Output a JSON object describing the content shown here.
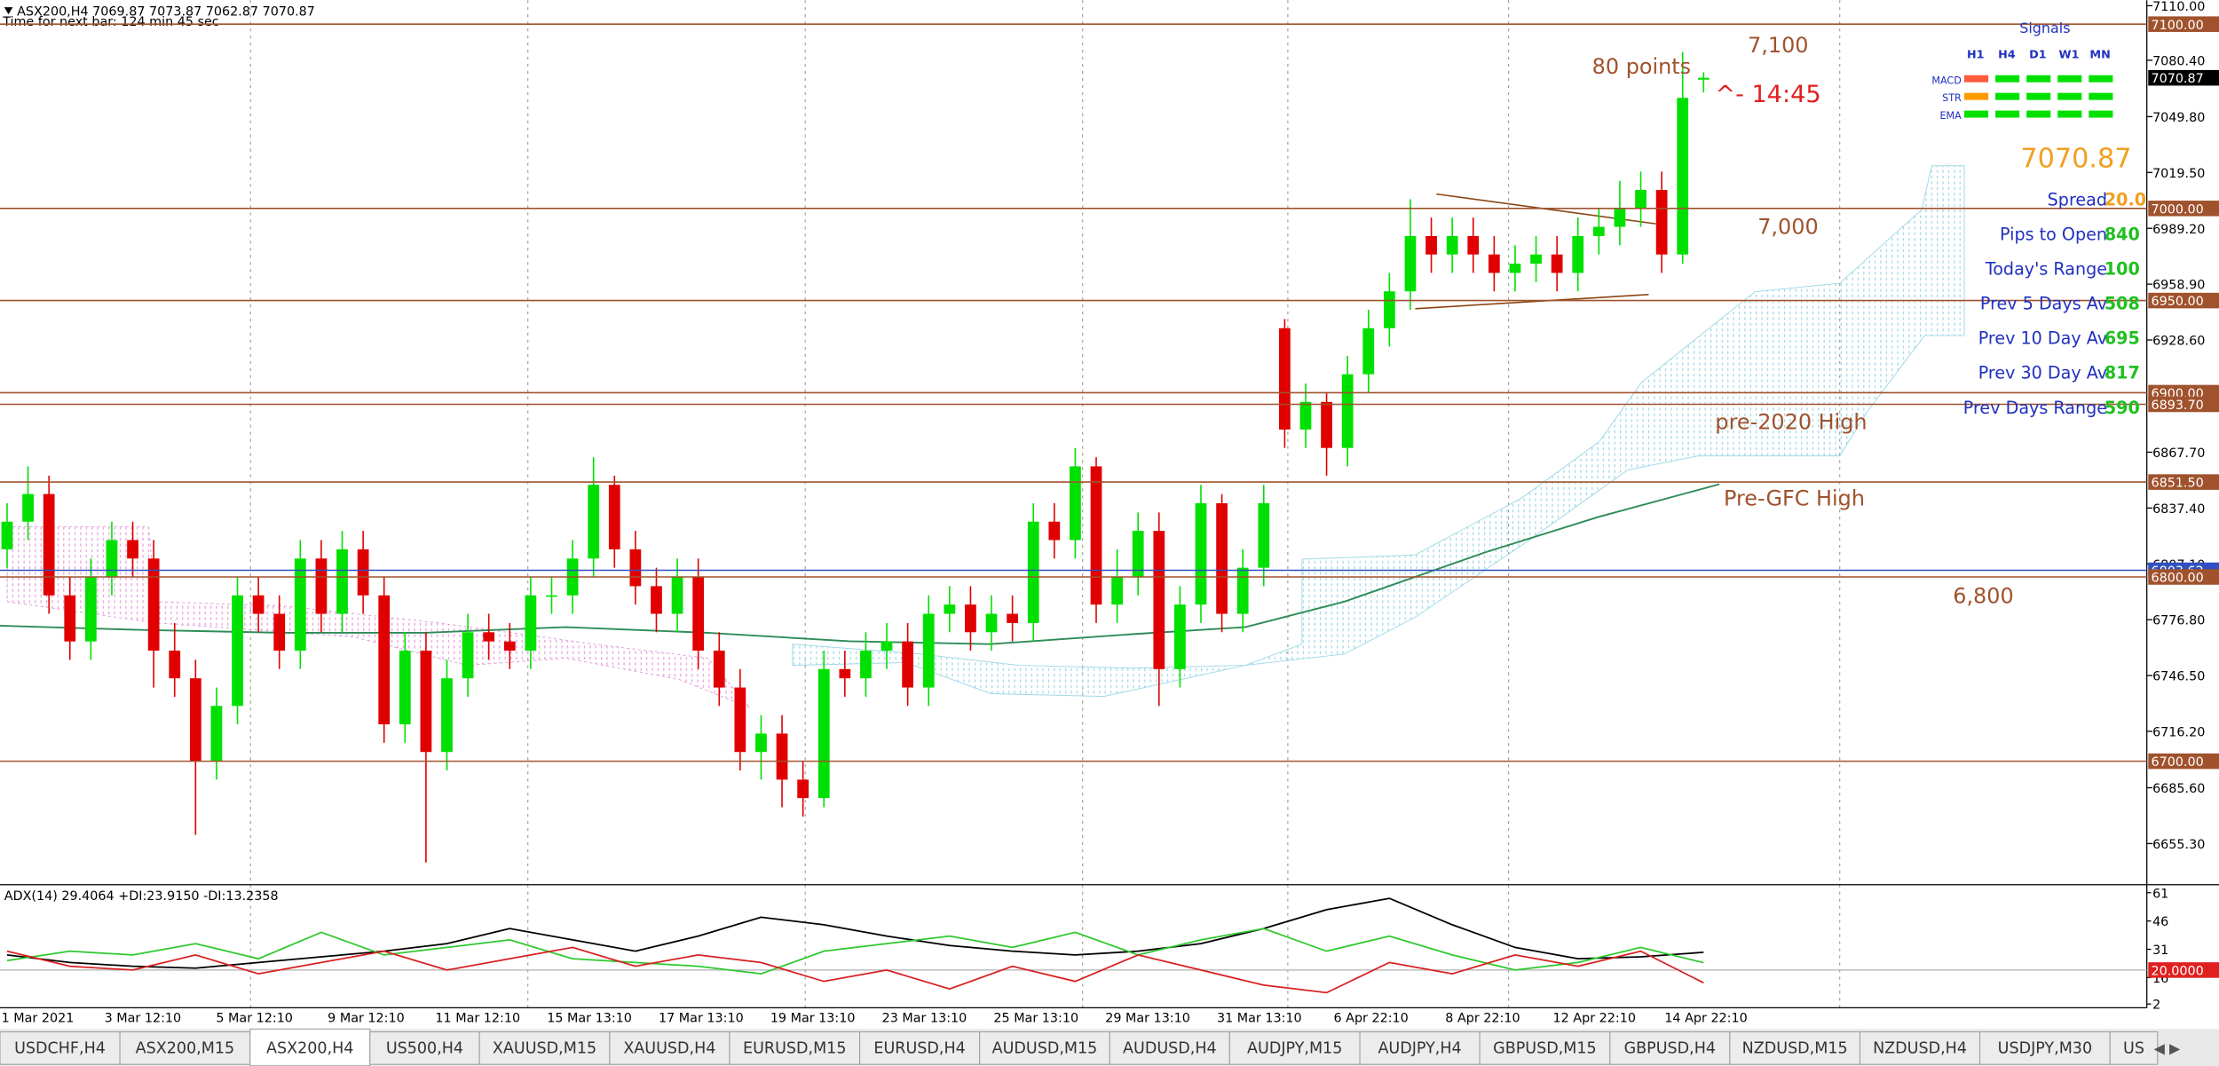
{
  "header": {
    "title": "ASX200,H4  7069.87 7073.87 7062.87 7070.87",
    "timer": "Time for next bar: 124 min 45 sec"
  },
  "chart_data": {
    "type": "candlestick",
    "x_labels": [
      "1 Mar 2021",
      "3 Mar 12:10",
      "5 Mar 12:10",
      "9 Mar 12:10",
      "11 Mar 12:10",
      "15 Mar 13:10",
      "17 Mar 13:10",
      "19 Mar 13:10",
      "23 Mar 13:10",
      "25 Mar 13:10",
      "29 Mar 13:10",
      "31 Mar 13:10",
      "6 Apr 22:10",
      "8 Apr 22:10",
      "12 Apr 22:10",
      "14 Apr 22:10"
    ],
    "open": [
      6815,
      6830,
      6845,
      6790,
      6765,
      6800,
      6820,
      6810,
      6760,
      6745,
      6700,
      6730,
      6790,
      6780,
      6760,
      6810,
      6780,
      6815,
      6790,
      6720,
      6760,
      6705,
      6745,
      6770,
      6765,
      6760,
      6790,
      6790,
      6810,
      6850,
      6815,
      6795,
      6780,
      6800,
      6760,
      6740,
      6705,
      6715,
      6690,
      6680,
      6750,
      6745,
      6760,
      6765,
      6740,
      6780,
      6785,
      6770,
      6780,
      6775,
      6830,
      6820,
      6860,
      6785,
      6800,
      6825,
      6750,
      6785,
      6840,
      6780,
      6805,
      6935,
      6880,
      6895,
      6870,
      6910,
      6935,
      6955,
      6985,
      6975,
      6985,
      6975,
      6965,
      6970,
      6975,
      6965,
      6985,
      6990,
      7000,
      7010,
      6975,
      7069.87
    ],
    "high": [
      6840,
      6860,
      6855,
      6800,
      6810,
      6830,
      6830,
      6820,
      6775,
      6755,
      6740,
      6800,
      6800,
      6790,
      6820,
      6820,
      6825,
      6825,
      6800,
      6770,
      6770,
      6755,
      6780,
      6780,
      6775,
      6800,
      6800,
      6820,
      6865,
      6855,
      6825,
      6805,
      6810,
      6810,
      6770,
      6750,
      6725,
      6725,
      6700,
      6760,
      6760,
      6770,
      6775,
      6775,
      6790,
      6795,
      6795,
      6790,
      6790,
      6840,
      6840,
      6870,
      6865,
      6815,
      6835,
      6835,
      6795,
      6850,
      6845,
      6815,
      6850,
      6940,
      6905,
      6900,
      6920,
      6945,
      6965,
      7005,
      6995,
      6995,
      6995,
      6985,
      6980,
      6985,
      6985,
      6995,
      7000,
      7015,
      7020,
      7020,
      7085,
      7073.87
    ],
    "low": [
      6805,
      6820,
      6780,
      6755,
      6755,
      6790,
      6800,
      6740,
      6735,
      6660,
      6690,
      6720,
      6770,
      6750,
      6750,
      6770,
      6770,
      6780,
      6710,
      6710,
      6645,
      6695,
      6735,
      6755,
      6750,
      6750,
      6780,
      6780,
      6800,
      6805,
      6785,
      6770,
      6770,
      6750,
      6730,
      6695,
      6690,
      6675,
      6670,
      6675,
      6735,
      6735,
      6750,
      6730,
      6730,
      6770,
      6760,
      6760,
      6765,
      6765,
      6810,
      6810,
      6775,
      6775,
      6790,
      6730,
      6740,
      6775,
      6770,
      6770,
      6795,
      6870,
      6870,
      6855,
      6860,
      6900,
      6925,
      6945,
      6965,
      6965,
      6965,
      6955,
      6955,
      6960,
      6955,
      6955,
      6975,
      6980,
      6990,
      6965,
      6970,
      7062.87
    ],
    "close": [
      6830,
      6845,
      6790,
      6765,
      6800,
      6820,
      6810,
      6760,
      6745,
      6700,
      6730,
      6790,
      6780,
      6760,
      6810,
      6780,
      6815,
      6790,
      6720,
      6760,
      6705,
      6745,
      6770,
      6765,
      6760,
      6790,
      6790,
      6810,
      6850,
      6815,
      6795,
      6780,
      6800,
      6760,
      6740,
      6705,
      6715,
      6690,
      6680,
      6750,
      6745,
      6760,
      6765,
      6740,
      6780,
      6785,
      6770,
      6780,
      6775,
      6830,
      6820,
      6860,
      6785,
      6800,
      6825,
      6750,
      6785,
      6840,
      6780,
      6805,
      6840,
      6880,
      6895,
      6870,
      6910,
      6935,
      6955,
      6985,
      6975,
      6985,
      6975,
      6965,
      6970,
      6975,
      6965,
      6985,
      6990,
      7000,
      7010,
      6975,
      7060,
      7070.87
    ],
    "up_color": "#00e000",
    "down_color": "#e00000",
    "ylim": [
      6633,
      7113
    ],
    "yticks": [
      {
        "value": 7110,
        "label": "7110.00"
      },
      {
        "value": 7080.4,
        "label": "7080.40"
      },
      {
        "value": 7049.8,
        "label": "7049.80"
      },
      {
        "value": 7019.5,
        "label": "7019.50"
      },
      {
        "value": 6989.2,
        "label": "6989.20"
      },
      {
        "value": 6958.9,
        "label": "6958.90"
      },
      {
        "value": 6928.6,
        "label": "6928.60"
      },
      {
        "value": 6867.7,
        "label": "6867.70"
      },
      {
        "value": 6837.4,
        "label": "6837.40"
      },
      {
        "value": 6807.1,
        "label": "6807.10"
      },
      {
        "value": 6776.8,
        "label": "6776.80"
      },
      {
        "value": 6746.5,
        "label": "6746.50"
      },
      {
        "value": 6716.2,
        "label": "6716.20"
      },
      {
        "value": 6685.6,
        "label": "6685.60"
      },
      {
        "value": 6655.3,
        "label": "6655.30"
      }
    ],
    "levels": [
      {
        "value": 7100,
        "label": "7100.00",
        "color": "#a0522d"
      },
      {
        "value": 7000,
        "label": "7000.00",
        "color": "#a0522d"
      },
      {
        "value": 6950,
        "label": "6950.00",
        "color": "#a0522d"
      },
      {
        "value": 6900,
        "label": "6900.00",
        "color": "#a0522d"
      },
      {
        "value": 6893.7,
        "label": "6893.70",
        "color": "#a0522d"
      },
      {
        "value": 6851.5,
        "label": "6851.50",
        "color": "#a0522d"
      },
      {
        "value": 6803.62,
        "label": "6803.62",
        "color": "#3050c0"
      },
      {
        "value": 6800,
        "label": "6800.00",
        "color": "#a0522d"
      },
      {
        "value": 6700,
        "label": "6700.00",
        "color": "#a0522d"
      }
    ],
    "current_price": {
      "value": 7070.87,
      "label": "7070.87"
    },
    "annotations": [
      "80 points",
      "^- 14:45",
      "7,100",
      "7,000",
      "pre-2020 High",
      "Pre-GFC High",
      "6,800"
    ]
  },
  "info": {
    "signals_title": "Signals",
    "timeframes": [
      "H1",
      "H4",
      "D1",
      "W1",
      "MN"
    ],
    "indicators": [
      "MACD",
      "STR",
      "EMA"
    ],
    "price": "7070.87",
    "rows": [
      {
        "label": "Spread",
        "value": "20.0"
      },
      {
        "label": "Pips to Open",
        "value": "840"
      },
      {
        "label": "Today's Range",
        "value": "100"
      },
      {
        "label": "Prev 5 Days Av",
        "value": "508"
      },
      {
        "label": "Prev 10 Day Av",
        "value": "695"
      },
      {
        "label": "Prev 30 Day Av",
        "value": "817"
      },
      {
        "label": "Prev Days Range",
        "value": "590"
      }
    ]
  },
  "adx_chart": {
    "type": "line",
    "title": "ADX(14) 29.4064 +DI:23.9150 -DI:13.2358",
    "series": [
      {
        "color": "#000000",
        "values": [
          28,
          24,
          22,
          21,
          24,
          27,
          30,
          34,
          42,
          36,
          30,
          38,
          48,
          44,
          38,
          33,
          30,
          28,
          30,
          34,
          42,
          52,
          58,
          44,
          32,
          26,
          27,
          29.4064
        ]
      },
      {
        "color": "#2ec82e",
        "values": [
          25,
          30,
          28,
          34,
          26,
          40,
          28,
          32,
          36,
          26,
          24,
          22,
          18,
          30,
          34,
          38,
          32,
          40,
          28,
          36,
          42,
          30,
          38,
          28,
          20,
          24,
          32,
          23.915
        ]
      },
      {
        "color": "#d82020",
        "values": [
          30,
          22,
          20,
          28,
          18,
          24,
          30,
          20,
          26,
          32,
          22,
          28,
          24,
          14,
          20,
          10,
          22,
          14,
          28,
          20,
          12,
          8,
          24,
          18,
          28,
          22,
          30,
          13.2358
        ]
      }
    ],
    "ylim": [
      0,
      63
    ],
    "yticks": [
      61,
      46,
      31,
      16,
      2
    ],
    "level": {
      "value": 20,
      "label": "20.0000"
    }
  },
  "tabs": [
    "USDCHF,H4",
    "ASX200,M15",
    "ASX200,H4",
    "US500,H4",
    "XAUUSD,M15",
    "XAUUSD,H4",
    "EURUSD,M15",
    "EURUSD,H4",
    "AUDUSD,M15",
    "AUDUSD,H4",
    "AUDJPY,M15",
    "AUDJPY,H4",
    "GBPUSD,M15",
    "GBPUSD,H4",
    "NZDUSD,M15",
    "NZDUSD,H4",
    "USDJPY,M30",
    "US"
  ],
  "active_tab": 2
}
